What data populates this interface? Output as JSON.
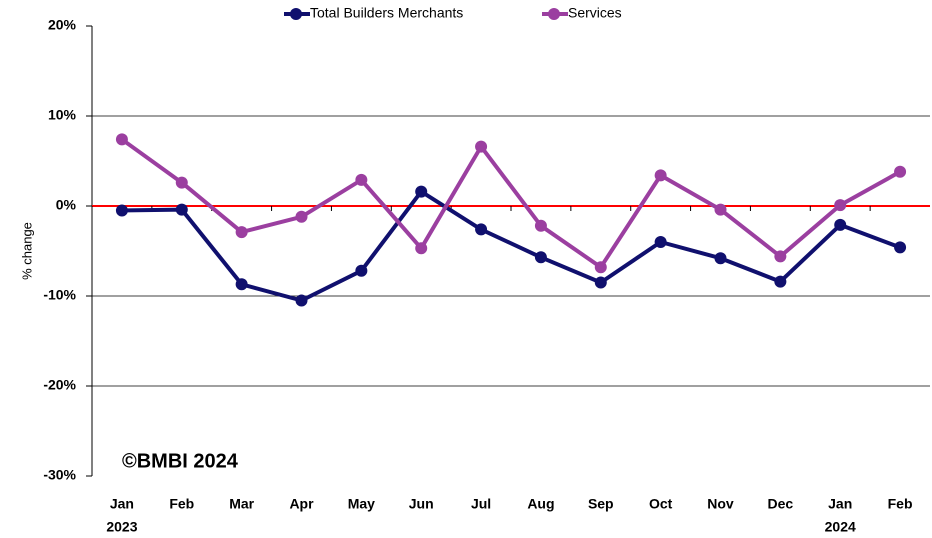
{
  "chart_data": {
    "type": "line",
    "y_label": "% change",
    "annotation": "©BMBI 2024",
    "categories": [
      "Jan",
      "Feb",
      "Mar",
      "Apr",
      "May",
      "Jun",
      "Jul",
      "Aug",
      "Sep",
      "Oct",
      "Nov",
      "Dec",
      "Jan",
      "Feb"
    ],
    "year_labels": [
      "2023",
      null,
      null,
      null,
      null,
      null,
      null,
      null,
      null,
      null,
      null,
      null,
      "2024",
      null
    ],
    "series": [
      {
        "name": "Total Builders Merchants",
        "color": "#10106e",
        "values": [
          -0.5,
          -0.4,
          -8.7,
          -10.5,
          -7.2,
          1.6,
          -2.6,
          -5.7,
          -8.5,
          -4.0,
          -5.8,
          -8.4,
          -2.1,
          -4.6
        ]
      },
      {
        "name": "Services",
        "color": "#9b3fa0",
        "values": [
          7.4,
          2.6,
          -2.9,
          -1.2,
          2.9,
          -4.7,
          6.6,
          -2.2,
          -6.8,
          3.4,
          -0.4,
          -5.6,
          0.1,
          3.8
        ]
      }
    ],
    "ylim": [
      -30,
      20
    ],
    "yticks": [
      {
        "value": -30,
        "label": "-30%"
      },
      {
        "value": -20,
        "label": "-20%"
      },
      {
        "value": -10,
        "label": "-10%"
      },
      {
        "value": 0,
        "label": "0%"
      },
      {
        "value": 10,
        "label": "10%"
      },
      {
        "value": 20,
        "label": "20%"
      }
    ],
    "grid": true,
    "zero_line_color": "#ff0000",
    "legend": "top"
  }
}
